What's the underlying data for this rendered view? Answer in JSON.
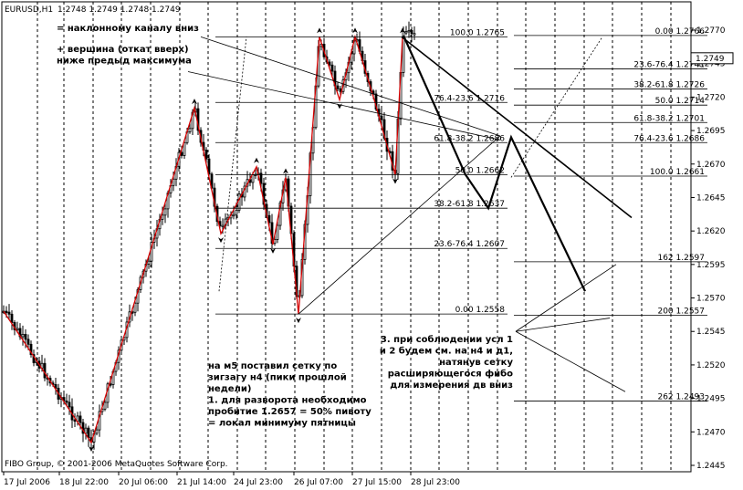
{
  "header": {
    "symbol": "EURUSD,H1",
    "ohlc": "1.2748 1.2749 1.2748 1.2749"
  },
  "footer": {
    "copyright": "FIBO Group, © 2001-2006 MetaQuotes Software Corp."
  },
  "annotations": [
    {
      "id": "a1",
      "lines": [
        "= наклонному каналу вниз"
      ]
    },
    {
      "id": "a2",
      "lines": [
        "+ вершина (откат вверх)",
        "ниже предыд максимума"
      ]
    },
    {
      "id": "a3",
      "lines": [
        "на м5 поставил сетку по",
        "зигзагу н4 (пики прошлой",
        "недели)",
        "1. для разворота необходимо",
        "пробитие 1.2657 = 50% пивоту",
        "= локал минимуму пятницы"
      ]
    },
    {
      "id": "a4",
      "lines": [
        "3. при соблюдении усл 1",
        "и 2 будем см. на н4 и д1,",
        "натянув сетку",
        "расширяющегося фибо",
        "для измерения дв вниз"
      ]
    }
  ],
  "chart_data": {
    "type": "candlestick",
    "symbol": "EURUSD",
    "timeframe": "H1",
    "last_price": 1.2749,
    "last_price_label": "1.2749",
    "ylim": [
      1.244,
      1.2775
    ],
    "y_ticks": [
      "1.2770",
      "1.2745",
      "1.2720",
      "1.2695",
      "1.2670",
      "1.2645",
      "1.2620",
      "1.2595",
      "1.2570",
      "1.2545",
      "1.2520",
      "1.2495",
      "1.2470",
      "1.2445"
    ],
    "x_ticks": [
      "17 Jul 2006",
      "18 Jul 22:00",
      "20 Jul 06:00",
      "21 Jul 14:00",
      "24 Jul 23:00",
      "26 Jul 07:00",
      "27 Jul 15:00",
      "28 Jul 23:00"
    ],
    "grid": true,
    "zigzag": [
      1.256,
      1.2462,
      1.2712,
      1.2618,
      1.2668,
      1.261,
      1.266,
      1.2558,
      1.2765,
      1.2718,
      1.2765,
      1.2718,
      1.2662,
      1.2765
    ],
    "fibo_left": [
      {
        "label": "100.0 1.2765",
        "price": 1.2765
      },
      {
        "label": "76.4-23.6 1.2716",
        "price": 1.2716
      },
      {
        "label": "61.8-38.2 1.2686",
        "price": 1.2686
      },
      {
        "label": "50.0 1.2662",
        "price": 1.2662
      },
      {
        "label": "38.2-61.8 1.2637",
        "price": 1.2637
      },
      {
        "label": "23.6-76.4 1.2607",
        "price": 1.2607
      },
      {
        "label": "0.00 1.2558",
        "price": 1.2558
      }
    ],
    "fibo_right": [
      {
        "label": "0.00 1.2766",
        "price": 1.2766
      },
      {
        "label": "23.6-76.4 1.2741",
        "price": 1.2741
      },
      {
        "label": "38.2-61.8 1.2726",
        "price": 1.2726
      },
      {
        "label": "50.0 1.2714",
        "price": 1.2714
      },
      {
        "label": "61.8-38.2 1.2701",
        "price": 1.2701
      },
      {
        "label": "76.4-23.6 1.2686",
        "price": 1.2686
      },
      {
        "label": "100.0 1.2661",
        "price": 1.2661
      },
      {
        "label": "162 1.2597",
        "price": 1.2597
      },
      {
        "label": "200 1.2557",
        "price": 1.2557
      },
      {
        "label": "262 1.2493",
        "price": 1.2493
      }
    ],
    "projection": [
      1.2766,
      1.2662,
      1.2637,
      1.269,
      1.2575
    ]
  }
}
